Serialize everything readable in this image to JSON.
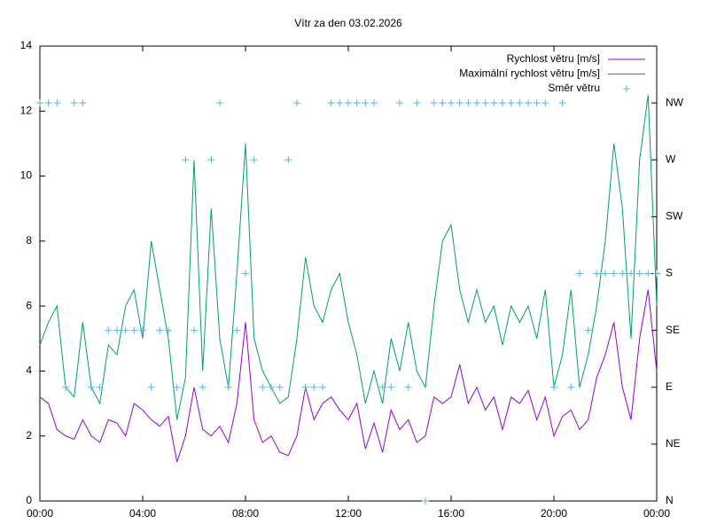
{
  "chart_data": {
    "type": "line",
    "title": "Vítr za den 03.02.2026",
    "x": [
      0,
      20,
      40,
      60,
      80,
      100,
      120,
      140,
      160,
      180,
      200,
      220,
      240,
      260,
      280,
      300,
      320,
      340,
      360,
      380,
      400,
      420,
      440,
      460,
      480,
      500,
      520,
      540,
      560,
      580,
      600,
      620,
      640,
      660,
      680,
      700,
      720,
      740,
      760,
      780,
      800,
      820,
      840,
      860,
      880,
      900,
      920,
      940,
      960,
      980,
      1000,
      1020,
      1040,
      1060,
      1080,
      1100,
      1120,
      1140,
      1160,
      1180,
      1200,
      1220,
      1240,
      1260,
      1280,
      1300,
      1320,
      1340,
      1360,
      1380,
      1400,
      1420,
      1440
    ],
    "xlim": [
      0,
      1440
    ],
    "xticks": [
      {
        "value": 0,
        "label": "00:00"
      },
      {
        "value": 240,
        "label": "04:00"
      },
      {
        "value": 480,
        "label": "08:00"
      },
      {
        "value": 720,
        "label": "12:00"
      },
      {
        "value": 960,
        "label": "16:00"
      },
      {
        "value": 1200,
        "label": "20:00"
      },
      {
        "value": 1440,
        "label": "00:00"
      }
    ],
    "ylim": [
      0,
      14
    ],
    "yticks": [
      0,
      2,
      4,
      6,
      8,
      10,
      12,
      14
    ],
    "y2lim": [
      0,
      360
    ],
    "y2ticks": [
      {
        "value": 0,
        "label": "N"
      },
      {
        "value": 45,
        "label": "NE"
      },
      {
        "value": 90,
        "label": "E"
      },
      {
        "value": 135,
        "label": "SE"
      },
      {
        "value": 180,
        "label": "S"
      },
      {
        "value": 225,
        "label": "SW"
      },
      {
        "value": 270,
        "label": "W"
      },
      {
        "value": 315,
        "label": "NW"
      }
    ],
    "legend": "top-right",
    "series": [
      {
        "name": "Rychlost větru [m/s]",
        "color": "#9400d3",
        "mark": "line",
        "values": [
          3.2,
          3.0,
          2.2,
          2.0,
          1.9,
          2.5,
          2.0,
          1.8,
          2.5,
          2.4,
          2.0,
          3.0,
          2.8,
          2.5,
          2.3,
          2.6,
          1.2,
          2.0,
          3.5,
          2.2,
          2.0,
          2.3,
          1.8,
          3.0,
          5.5,
          2.5,
          1.8,
          2.0,
          1.5,
          1.4,
          2.0,
          3.5,
          2.5,
          3.0,
          3.2,
          2.8,
          2.5,
          3.0,
          1.6,
          2.4,
          1.5,
          2.8,
          2.2,
          2.5,
          1.8,
          2.0,
          3.2,
          3.0,
          3.2,
          4.2,
          3.0,
          3.5,
          2.8,
          3.2,
          2.2,
          3.2,
          3.0,
          3.4,
          2.5,
          3.2,
          2.0,
          2.6,
          2.8,
          2.2,
          2.5,
          3.8,
          4.5,
          5.5,
          3.5,
          2.5,
          5.0,
          6.5,
          4.0
        ]
      },
      {
        "name": "Maximální rychlost větru [m/s]",
        "color": "#009e73",
        "mark": "line",
        "values": [
          4.8,
          5.5,
          6.0,
          3.5,
          3.2,
          5.5,
          3.5,
          3.0,
          4.8,
          4.5,
          6.0,
          6.5,
          5.0,
          8.0,
          6.5,
          5.0,
          2.5,
          3.8,
          10.5,
          4.0,
          9.0,
          5.0,
          3.5,
          7.0,
          11.0,
          5.0,
          4.0,
          3.5,
          3.0,
          3.2,
          5.0,
          7.5,
          6.0,
          5.5,
          6.5,
          7.0,
          5.5,
          4.5,
          3.0,
          4.0,
          3.0,
          5.0,
          4.0,
          5.5,
          4.0,
          3.5,
          6.0,
          8.0,
          8.5,
          6.5,
          5.5,
          6.5,
          5.5,
          6.0,
          4.8,
          6.0,
          5.5,
          6.0,
          5.0,
          6.5,
          3.5,
          4.5,
          6.5,
          3.5,
          4.5,
          6.0,
          8.0,
          11.0,
          9.0,
          5.0,
          10.5,
          12.5,
          6.0
        ]
      },
      {
        "name": "Směr větru",
        "color": "#56b4e9",
        "mark": "plus",
        "axis": "y2",
        "values": [
          315,
          315,
          315,
          90,
          315,
          315,
          90,
          90,
          135,
          135,
          135,
          135,
          135,
          90,
          135,
          135,
          90,
          270,
          135,
          90,
          270,
          315,
          90,
          135,
          180,
          270,
          90,
          90,
          90,
          270,
          315,
          90,
          90,
          90,
          315,
          315,
          315,
          315,
          315,
          315,
          90,
          90,
          315,
          90,
          315,
          0,
          315,
          315,
          315,
          315,
          315,
          315,
          315,
          315,
          315,
          315,
          315,
          315,
          315,
          315,
          90,
          315,
          90,
          180,
          135,
          180,
          180,
          180,
          180,
          180,
          180,
          180,
          180
        ]
      }
    ]
  }
}
